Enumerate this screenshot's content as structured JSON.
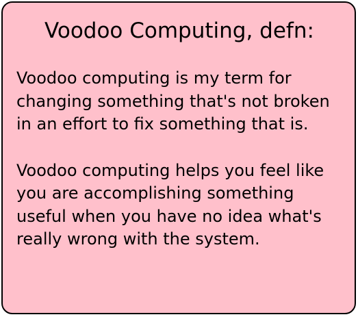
{
  "card": {
    "title": "Voodoo Computing, defn:",
    "paragraphs": [
      "Voodoo computing is my term for changing something that's not broken in an effort to fix something that is.",
      "Voodoo computing helps you feel like you are accomplishing something useful when you have no idea what's really wrong with the system."
    ],
    "background_color": "#ffc0cb",
    "border_color": "#000000"
  }
}
